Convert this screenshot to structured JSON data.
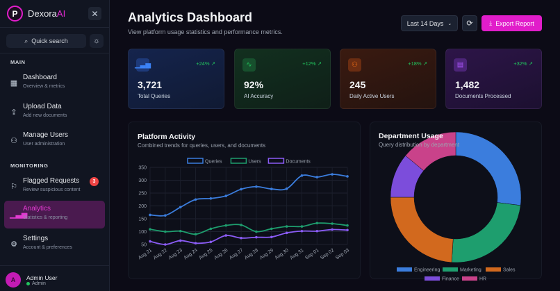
{
  "sidebar": {
    "brand": {
      "name": "Dexora",
      "suffix": "AI",
      "initial": "P"
    },
    "search_label": "Quick search",
    "sections": [
      {
        "label": "MAIN"
      },
      {
        "label": "MONITORING"
      }
    ],
    "items": [
      {
        "label": "Dashboard",
        "sub": "Overview & metrics",
        "icon": "grid-icon"
      },
      {
        "label": "Upload Data",
        "sub": "Add new documents",
        "icon": "upload-icon"
      },
      {
        "label": "Manage Users",
        "sub": "User administration",
        "icon": "users-icon"
      },
      {
        "label": "Flagged Requests",
        "sub": "Review suspicious content",
        "icon": "flag-icon",
        "badge": "3"
      },
      {
        "label": "Analytics",
        "sub": "Statistics & reporting",
        "icon": "bar-chart-icon",
        "active": true
      },
      {
        "label": "Settings",
        "sub": "Account & preferences",
        "icon": "gear-icon"
      }
    ],
    "user": {
      "initial": "A",
      "name": "Admin User",
      "role": "Admin"
    }
  },
  "header": {
    "title": "Analytics Dashboard",
    "subtitle": "View platform usage statistics and performance metrics.",
    "range": "Last 14 Days",
    "export_label": "Export Report"
  },
  "stats": [
    {
      "value": "3,721",
      "label": "Total Queries",
      "change": "+24%",
      "color": "#3b82f6"
    },
    {
      "value": "92%",
      "label": "AI Accuracy",
      "change": "+12%",
      "color": "#22c55e"
    },
    {
      "value": "245",
      "label": "Daily Active Users",
      "change": "+18%",
      "color": "#f97316"
    },
    {
      "value": "1,482",
      "label": "Documents Processed",
      "change": "+32%",
      "color": "#a855f7"
    }
  ],
  "activity": {
    "title": "Platform Activity",
    "subtitle": "Combined trends for queries, users, and documents"
  },
  "department": {
    "title": "Department Usage",
    "subtitle": "Query distribution by department"
  },
  "chart_data": [
    {
      "type": "line",
      "x": [
        "Aug 21",
        "Aug 22",
        "Aug 23",
        "Aug 24",
        "Aug 25",
        "Aug 26",
        "Aug 27",
        "Aug 28",
        "Aug 29",
        "Aug 30",
        "Aug 31",
        "Sep 01",
        "Sep 02",
        "Sep 03"
      ],
      "ylim": [
        50,
        350
      ],
      "yticks": [
        50,
        100,
        150,
        200,
        250,
        300,
        350
      ],
      "grid": true,
      "legend": "top",
      "series": [
        {
          "name": "Queries",
          "color": "#3b7ddd",
          "values": [
            165,
            163,
            195,
            225,
            229,
            239,
            265,
            275,
            266,
            267,
            318,
            312,
            323,
            315
          ]
        },
        {
          "name": "Users",
          "color": "#1e9e6e",
          "values": [
            109,
            100,
            102,
            90,
            111,
            124,
            126,
            100,
            111,
            120,
            120,
            133,
            131,
            124
          ]
        },
        {
          "name": "Documents",
          "color": "#8b5cf6",
          "values": [
            62,
            50,
            65,
            55,
            60,
            85,
            75,
            78,
            79,
            95,
            102,
            102,
            108,
            106
          ]
        }
      ]
    },
    {
      "type": "pie",
      "donut": true,
      "legend": "bottom",
      "categories": [
        "Engineering",
        "Marketing",
        "Sales",
        "Finance",
        "HR"
      ],
      "values": [
        27,
        24,
        24,
        11,
        14
      ],
      "colors": [
        "#3b7ddd",
        "#1e9e6e",
        "#d2691e",
        "#7c4ddb",
        "#c9428a"
      ]
    }
  ]
}
